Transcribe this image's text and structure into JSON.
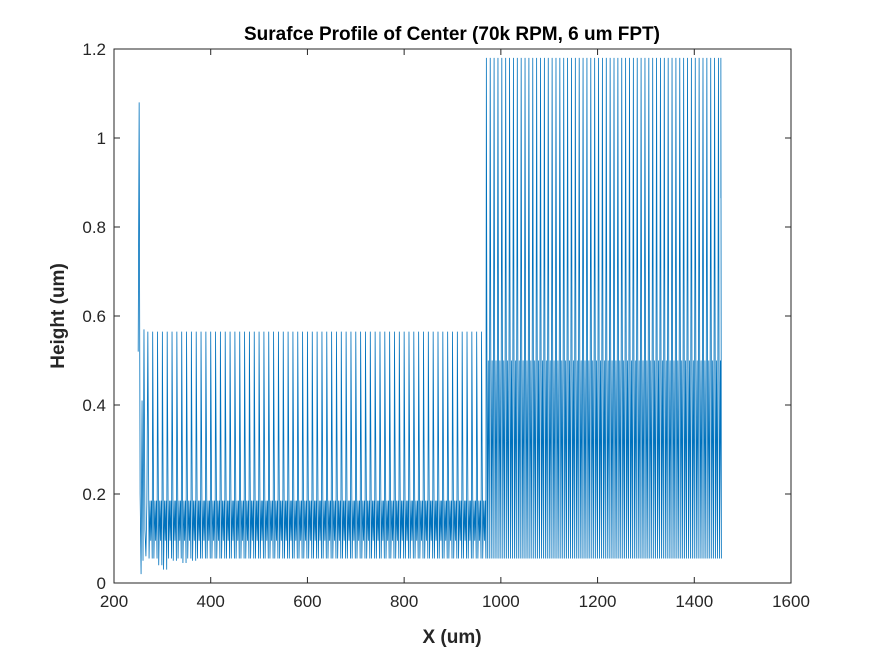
{
  "chart_data": {
    "type": "line",
    "title": "Surafce Profile of Center (70k RPM, 6 um FPT)",
    "xlabel": "X (um)",
    "ylabel": "Height (um)",
    "xlim": [
      200,
      1600
    ],
    "ylim": [
      0,
      1.2
    ],
    "xticks": [
      "200",
      "400",
      "600",
      "800",
      "1000",
      "1200",
      "1400",
      "1600"
    ],
    "yticks": [
      "0",
      "0.2",
      "0.4",
      "0.6",
      "0.8",
      "1",
      "1.2"
    ],
    "grid": false,
    "legend": "none",
    "series_color": "#0072BD",
    "series": [
      {
        "segments": [
          {
            "x_start": 250,
            "x_end": 270,
            "initial_points": [
              [
                250,
                0.52
              ],
              [
                252,
                1.08
              ],
              [
                254,
                0.2
              ],
              [
                256,
                0.02
              ],
              [
                258,
                0.41
              ],
              [
                260,
                0.05
              ],
              [
                262,
                0.57
              ],
              [
                264,
                0.12
              ],
              [
                266,
                0.06
              ],
              [
                268,
                0.18
              ]
            ]
          },
          {
            "x_start": 270,
            "x_end": 970,
            "period_um": 10,
            "peak": 0.565,
            "trough": 0.055,
            "mid_high": 0.185,
            "mid_low": 0.095,
            "early_low_points": [
              [
                290,
                0.04
              ],
              [
                300,
                0.03
              ],
              [
                320,
                0.05
              ],
              [
                340,
                0.045
              ],
              [
                360,
                0.05
              ]
            ]
          },
          {
            "x_start": 970,
            "x_end": 1455,
            "period_um": 8,
            "peak": 1.18,
            "trough": 0.055,
            "mid_high": 0.5,
            "end_value": 0.865
          }
        ]
      }
    ]
  }
}
